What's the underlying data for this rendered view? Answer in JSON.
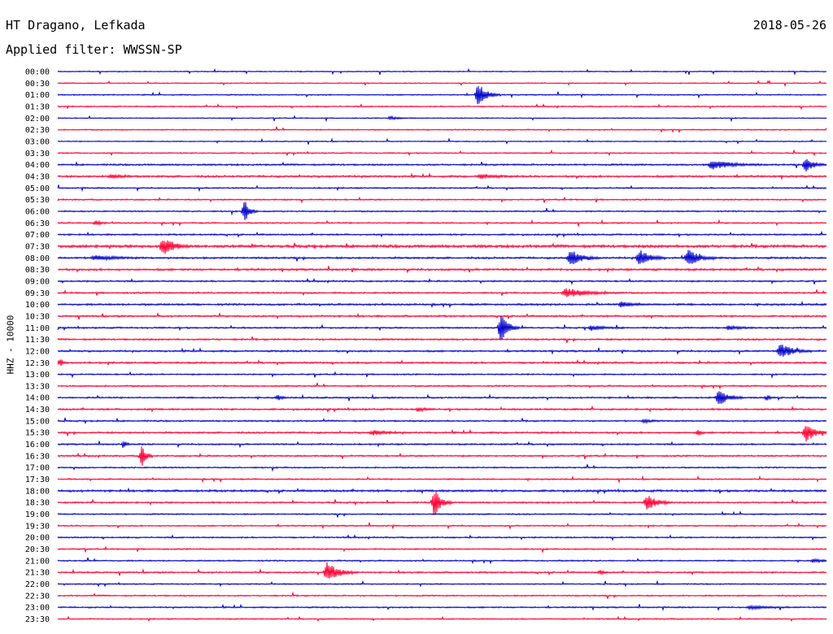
{
  "header": {
    "station": "HT Dragano, Lefkada",
    "date": "2018-05-26",
    "filter": "Applied filter: WWSSN-SP"
  },
  "chart_data": {
    "type": "helicorder",
    "ylabel": "HHZ - 10000",
    "row_labels": [
      "00:00",
      "00:30",
      "01:00",
      "01:30",
      "02:00",
      "02:30",
      "03:00",
      "03:30",
      "04:00",
      "04:30",
      "05:00",
      "05:30",
      "06:00",
      "06:30",
      "07:00",
      "07:30",
      "08:00",
      "08:30",
      "09:00",
      "09:30",
      "10:00",
      "10:30",
      "11:00",
      "11:30",
      "12:00",
      "12:30",
      "13:00",
      "13:30",
      "14:00",
      "14:30",
      "15:00",
      "15:30",
      "16:00",
      "16:30",
      "17:00",
      "17:30",
      "18:00",
      "18:30",
      "19:00",
      "19:30",
      "20:00",
      "20:30",
      "21:00",
      "21:30",
      "22:00",
      "22:30",
      "23:00",
      "23:30"
    ],
    "minutes_per_row": 30,
    "colors": [
      "#0000cc",
      "#ff0033"
    ],
    "noise": [
      0.6,
      0.6,
      0.7,
      0.7,
      0.6,
      0.7,
      0.6,
      0.7,
      1.0,
      1.1,
      0.8,
      0.8,
      0.8,
      0.8,
      0.9,
      1.6,
      1.1,
      1.2,
      0.9,
      0.9,
      1.1,
      1.0,
      0.9,
      1.0,
      1.0,
      1.0,
      0.8,
      0.9,
      0.9,
      1.0,
      0.9,
      1.0,
      0.9,
      0.9,
      0.8,
      0.8,
      1.2,
      0.9,
      0.8,
      0.8,
      0.8,
      0.8,
      0.8,
      0.9,
      0.7,
      0.8,
      0.8,
      0.7
    ],
    "events": [
      {
        "row": 2,
        "minute": 16.4,
        "amp": 14,
        "dur": 0.9
      },
      {
        "row": 4,
        "minute": 13.0,
        "amp": 2,
        "dur": 0.8
      },
      {
        "row": 8,
        "minute": 25.5,
        "amp": 6,
        "dur": 2.0
      },
      {
        "row": 8,
        "minute": 29.2,
        "amp": 9,
        "dur": 0.8
      },
      {
        "row": 9,
        "minute": 2.1,
        "amp": 3,
        "dur": 0.8
      },
      {
        "row": 9,
        "minute": 16.5,
        "amp": 3,
        "dur": 1.2
      },
      {
        "row": 12,
        "minute": 7.3,
        "amp": 13,
        "dur": 0.5
      },
      {
        "row": 13,
        "minute": 1.5,
        "amp": 3,
        "dur": 0.5
      },
      {
        "row": 15,
        "minute": 4.1,
        "amp": 12,
        "dur": 1.0
      },
      {
        "row": 16,
        "minute": 1.4,
        "amp": 3,
        "dur": 1.8
      },
      {
        "row": 16,
        "minute": 20.0,
        "amp": 11,
        "dur": 1.1
      },
      {
        "row": 16,
        "minute": 22.7,
        "amp": 11,
        "dur": 1.0
      },
      {
        "row": 16,
        "minute": 24.6,
        "amp": 11,
        "dur": 1.1
      },
      {
        "row": 19,
        "minute": 19.8,
        "amp": 6,
        "dur": 2.3
      },
      {
        "row": 20,
        "minute": 22.0,
        "amp": 3,
        "dur": 1.3
      },
      {
        "row": 22,
        "minute": 17.3,
        "amp": 20,
        "dur": 0.7
      },
      {
        "row": 22,
        "minute": 20.8,
        "amp": 3,
        "dur": 1.3
      },
      {
        "row": 22,
        "minute": 26.2,
        "amp": 3,
        "dur": 1.0
      },
      {
        "row": 24,
        "minute": 28.2,
        "amp": 10,
        "dur": 1.2
      },
      {
        "row": 25,
        "minute": 0.1,
        "amp": 5,
        "dur": 0.3
      },
      {
        "row": 28,
        "minute": 25.8,
        "amp": 10,
        "dur": 1.0
      },
      {
        "row": 28,
        "minute": 8.6,
        "amp": 3,
        "dur": 0.4
      },
      {
        "row": 28,
        "minute": 27.7,
        "amp": 3,
        "dur": 0.3
      },
      {
        "row": 29,
        "minute": 14.1,
        "amp": 3,
        "dur": 0.5
      },
      {
        "row": 30,
        "minute": 22.9,
        "amp": 2,
        "dur": 0.6
      },
      {
        "row": 31,
        "minute": 29.2,
        "amp": 13,
        "dur": 0.9
      },
      {
        "row": 31,
        "minute": 12.3,
        "amp": 3,
        "dur": 1.3
      },
      {
        "row": 31,
        "minute": 25.0,
        "amp": 3,
        "dur": 0.3
      },
      {
        "row": 32,
        "minute": 2.6,
        "amp": 3,
        "dur": 0.3
      },
      {
        "row": 33,
        "minute": 3.3,
        "amp": 14,
        "dur": 0.4
      },
      {
        "row": 37,
        "minute": 14.7,
        "amp": 18,
        "dur": 0.7
      },
      {
        "row": 37,
        "minute": 23.0,
        "amp": 11,
        "dur": 1.0
      },
      {
        "row": 43,
        "minute": 10.5,
        "amp": 13,
        "dur": 1.2
      },
      {
        "row": 43,
        "minute": 21.2,
        "amp": 3,
        "dur": 0.3
      },
      {
        "row": 46,
        "minute": 27.0,
        "amp": 2,
        "dur": 1.8
      },
      {
        "row": 42,
        "minute": 29.5,
        "amp": 2,
        "dur": 1.0
      }
    ]
  }
}
